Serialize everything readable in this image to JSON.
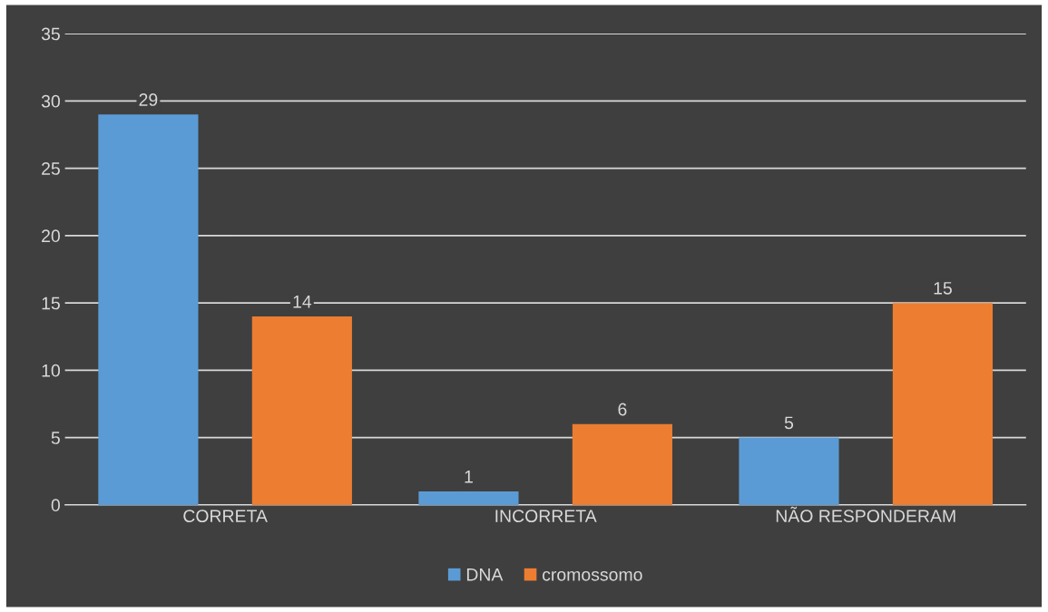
{
  "chart_data": {
    "type": "bar",
    "categories": [
      "CORRETA",
      "INCORRETA",
      "NÃO RESPONDERAM"
    ],
    "series": [
      {
        "name": "DNA",
        "color": "#5b9bd5",
        "values": [
          29,
          1,
          5
        ]
      },
      {
        "name": "cromossomo",
        "color": "#ed7d31",
        "values": [
          14,
          6,
          15
        ]
      }
    ],
    "ylim": [
      0,
      35
    ],
    "yticks": [
      0,
      5,
      10,
      15,
      20,
      25,
      30,
      35
    ],
    "grid": "y",
    "legend": "bottom",
    "data_labels": true
  }
}
